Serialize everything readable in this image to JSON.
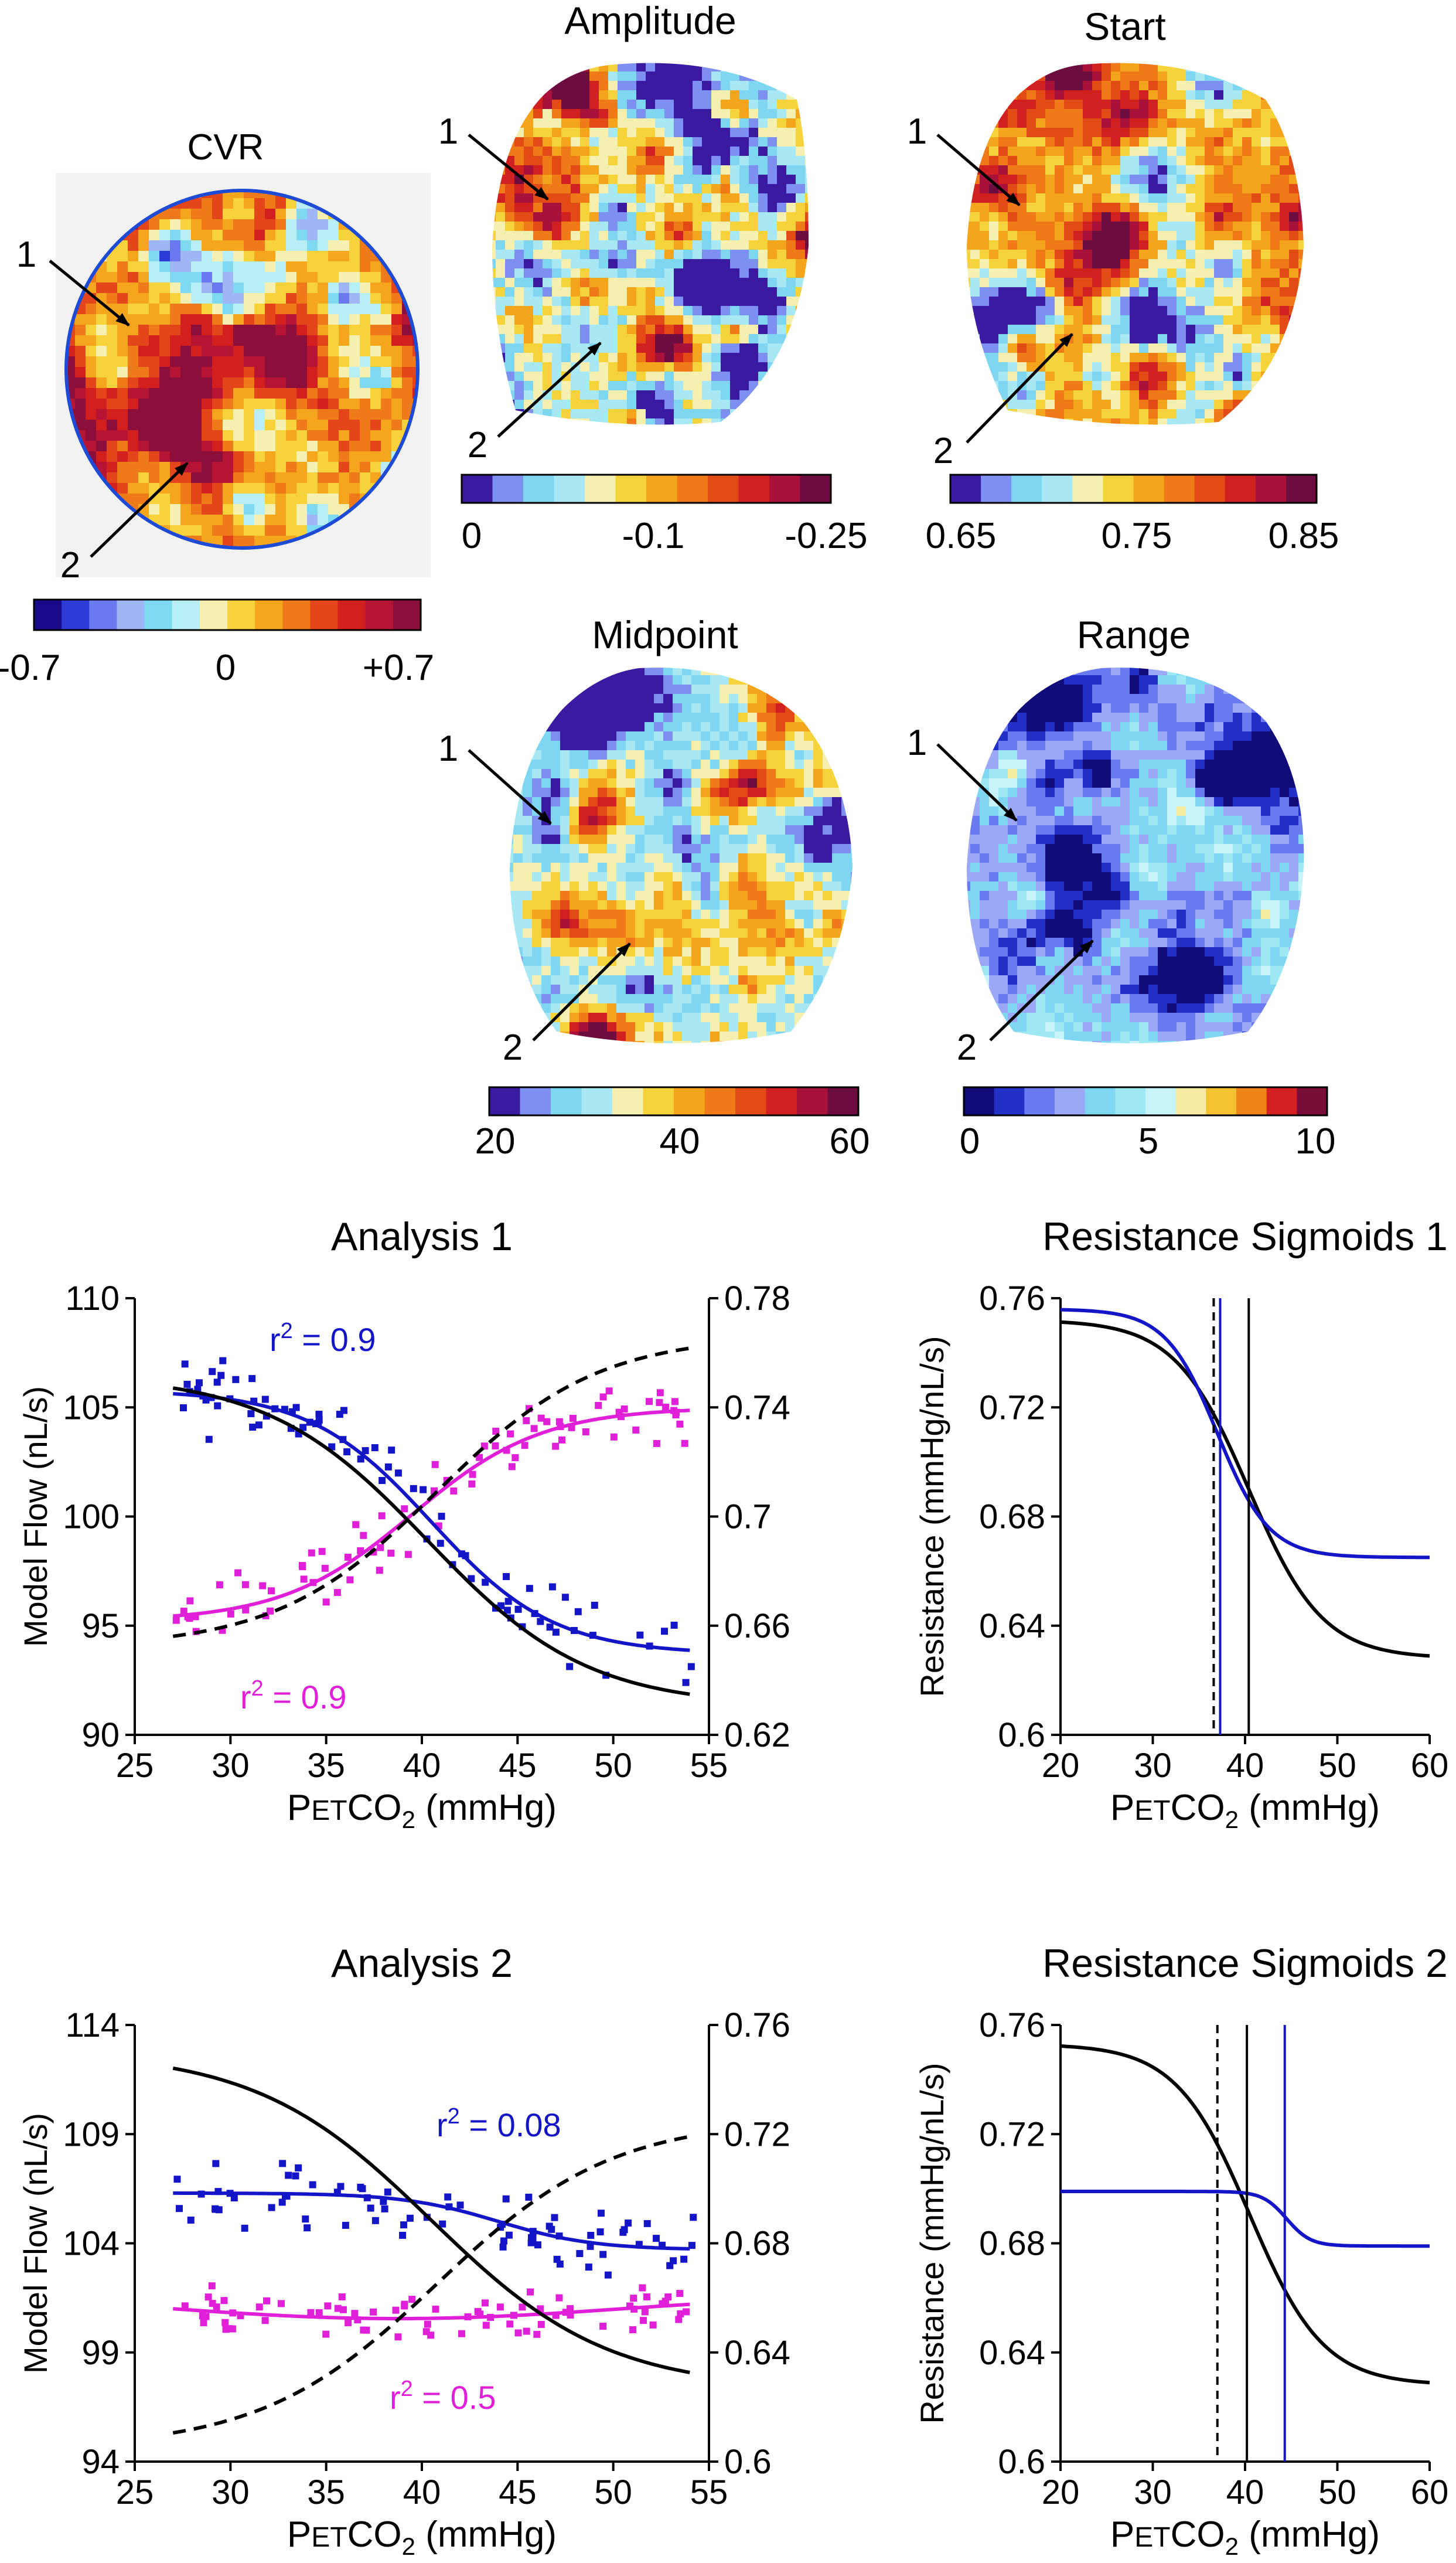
{
  "colors": {
    "blue": "#1515c8",
    "magenta": "#e020d8",
    "black": "#000000",
    "vessel_blue": "#1d4bd6"
  },
  "maps": [
    {
      "id": "cvr",
      "title": "CVR",
      "colorbar": {
        "scheme": "diverging",
        "labels": [
          "-0.7",
          "0",
          "+0.7"
        ]
      },
      "arrows": [
        "1",
        "2"
      ]
    },
    {
      "id": "amplitude",
      "title": "Amplitude",
      "colorbar": {
        "scheme": "sequential",
        "labels": [
          "0",
          "-0.1",
          "-0.25"
        ]
      },
      "arrows": [
        "1",
        "2"
      ]
    },
    {
      "id": "start",
      "title": "Start",
      "colorbar": {
        "scheme": "sequential",
        "labels": [
          "0.65",
          "0.75",
          "0.85"
        ]
      },
      "arrows": [
        "1",
        "2"
      ]
    },
    {
      "id": "midpoint",
      "title": "Midpoint",
      "colorbar": {
        "scheme": "sequential",
        "labels": [
          "20",
          "40",
          "60"
        ]
      },
      "arrows": [
        "1",
        "2"
      ]
    },
    {
      "id": "range",
      "title": "Range",
      "colorbar": {
        "scheme": "sequential",
        "labels": [
          "0",
          "5",
          "10"
        ]
      },
      "arrows": [
        "1",
        "2"
      ]
    }
  ],
  "chart_data": [
    {
      "id": "analysis1",
      "type": "scatter",
      "title": "Analysis 1",
      "xlabel_main": "P",
      "xlabel_sub": "ET",
      "xlabel_rest": "CO",
      "xlabel_subscript": "2",
      "xlabel_unit": " (mmHg)",
      "ylabel": "Model Flow (nL/s)",
      "xlim": [
        25,
        55
      ],
      "ylim": [
        90,
        110
      ],
      "y2lim": [
        0.62,
        0.78
      ],
      "xticks": [
        "25",
        "30",
        "35",
        "40",
        "45",
        "50",
        "55"
      ],
      "yticks": [
        "90",
        "95",
        "100",
        "105",
        "110"
      ],
      "y2ticks": [
        "0.62",
        "0.66",
        "0.7",
        "0.74",
        "0.78"
      ],
      "annotations": [
        {
          "text": "r",
          "sup": "2",
          "rest": " = 0.9",
          "series": "blue"
        },
        {
          "text": "r",
          "sup": "2",
          "rest": " = 0.9",
          "series": "magenta"
        }
      ],
      "series": [
        {
          "name": "flow_fit",
          "color": "blue",
          "kind": "sigmoid",
          "x0": 27,
          "x1": 54,
          "top": 105.8,
          "bottom": 93.7,
          "mid": 40.5,
          "k": 3.2
        },
        {
          "name": "resistance_fit",
          "color": "magenta",
          "kind": "sigmoid",
          "x0": 27,
          "x1": 54,
          "top": 95.2,
          "bottom": 105.0,
          "mid": 39.5,
          "k": 3.4
        },
        {
          "name": "model_black",
          "color": "black",
          "kind": "sigmoid",
          "x0": 27,
          "x1": 54,
          "top": 106.5,
          "bottom": 91.3,
          "mid": 40.3,
          "k": 4.2
        },
        {
          "name": "model_black_dashed",
          "color": "black",
          "dashed": true,
          "kind": "sigmoid",
          "x0": 27,
          "x1": 54,
          "top": 94.0,
          "bottom": 108.3,
          "mid": 40.8,
          "k": 4.2
        }
      ],
      "scatter": [
        {
          "color": "blue",
          "seed": 11,
          "n": 85,
          "noise": 1.3,
          "follow": "flow_fit"
        },
        {
          "color": "magenta",
          "seed": 29,
          "n": 85,
          "noise": 1.1,
          "follow": "resistance_fit"
        }
      ]
    },
    {
      "id": "sigmoid1",
      "type": "line",
      "title": "Resistance Sigmoids 1",
      "xlabel_main": "P",
      "xlabel_sub": "ET",
      "xlabel_rest": "CO",
      "xlabel_subscript": "2",
      "xlabel_unit": " (mmHg)",
      "ylabel": "Resistance (mmHg/nL/s)",
      "xlim": [
        20,
        60
      ],
      "ylim": [
        0.6,
        0.76
      ],
      "xticks": [
        "20",
        "30",
        "40",
        "50",
        "60"
      ],
      "yticks": [
        "0.6",
        "0.64",
        "0.68",
        "0.72",
        "0.76"
      ],
      "series": [
        {
          "name": "fit_black",
          "color": "black",
          "kind": "sigmoid",
          "x0": 20,
          "x1": 60,
          "top": 0.752,
          "bottom": 0.628,
          "mid": 40.4,
          "k": 4.0
        },
        {
          "name": "fit_blue",
          "color": "blue",
          "kind": "sigmoid",
          "x0": 20,
          "x1": 60,
          "top": 0.756,
          "bottom": 0.665,
          "mid": 37.0,
          "k": 2.8
        }
      ],
      "vlines": [
        {
          "x": 36.6,
          "color": "black",
          "dashed": true
        },
        {
          "x": 37.3,
          "color": "blue",
          "dashed": false
        },
        {
          "x": 40.4,
          "color": "black",
          "dashed": false
        }
      ]
    },
    {
      "id": "analysis2",
      "type": "scatter",
      "title": "Analysis 2",
      "xlabel_main": "P",
      "xlabel_sub": "ET",
      "xlabel_rest": "CO",
      "xlabel_subscript": "2",
      "xlabel_unit": " (mmHg)",
      "ylabel": "Model Flow (nL/s)",
      "xlim": [
        25,
        55
      ],
      "ylim": [
        94,
        114
      ],
      "y2lim": [
        0.6,
        0.76
      ],
      "xticks": [
        "25",
        "30",
        "35",
        "40",
        "45",
        "50",
        "55"
      ],
      "yticks": [
        "94",
        "99",
        "104",
        "109",
        "114"
      ],
      "y2ticks": [
        "0.6",
        "0.64",
        "0.68",
        "0.72",
        "0.76"
      ],
      "annotations": [
        {
          "text": "r",
          "sup": "2",
          "rest": " = 0.08",
          "series": "blue"
        },
        {
          "text": "r",
          "sup": "2",
          "rest": " = 0.5",
          "series": "magenta"
        }
      ],
      "series": [
        {
          "name": "flow_fit",
          "color": "blue",
          "kind": "sigmoid",
          "x0": 27,
          "x1": 54,
          "top": 106.3,
          "bottom": 103.7,
          "mid": 44.0,
          "k": 2.5
        },
        {
          "name": "resistance_fit",
          "color": "magenta",
          "kind": "wave",
          "x0": 27,
          "x1": 54,
          "base": 101.0,
          "amp": 0.45
        },
        {
          "name": "model_black",
          "color": "black",
          "kind": "sigmoid",
          "x0": 27,
          "x1": 54,
          "top": 112.8,
          "bottom": 97.3,
          "mid": 40.5,
          "k": 4.6
        },
        {
          "name": "model_black_dashed",
          "color": "black",
          "dashed": true,
          "kind": "sigmoid",
          "x0": 27,
          "x1": 54,
          "top": 94.6,
          "bottom": 109.7,
          "mid": 40.8,
          "k": 4.6
        }
      ],
      "scatter": [
        {
          "color": "blue",
          "seed": 53,
          "n": 80,
          "noise": 1.2,
          "follow": "flow_fit"
        },
        {
          "color": "magenta",
          "seed": 71,
          "n": 80,
          "noise": 0.8,
          "follow": "resistance_fit"
        }
      ]
    },
    {
      "id": "sigmoid2",
      "type": "line",
      "title": "Resistance Sigmoids 2",
      "xlabel_main": "P",
      "xlabel_sub": "ET",
      "xlabel_rest": "CO",
      "xlabel_subscript": "2",
      "xlabel_unit": " (mmHg)",
      "ylabel": "Resistance (mmHg/nL/s)",
      "xlim": [
        20,
        60
      ],
      "ylim": [
        0.6,
        0.76
      ],
      "xticks": [
        "20",
        "30",
        "40",
        "50",
        "60"
      ],
      "yticks": [
        "0.6",
        "0.64",
        "0.68",
        "0.72",
        "0.76"
      ],
      "series": [
        {
          "name": "fit_black",
          "color": "black",
          "kind": "sigmoid",
          "x0": 20,
          "x1": 60,
          "top": 0.753,
          "bottom": 0.628,
          "mid": 40.5,
          "k": 4.0
        },
        {
          "name": "fit_blue",
          "color": "blue",
          "kind": "sigmoid",
          "x0": 20,
          "x1": 60,
          "top": 0.699,
          "bottom": 0.679,
          "mid": 44.5,
          "k": 1.3
        }
      ],
      "vlines": [
        {
          "x": 37.0,
          "color": "black",
          "dashed": true
        },
        {
          "x": 40.2,
          "color": "black",
          "dashed": false
        },
        {
          "x": 44.3,
          "color": "blue",
          "dashed": false
        }
      ]
    }
  ]
}
